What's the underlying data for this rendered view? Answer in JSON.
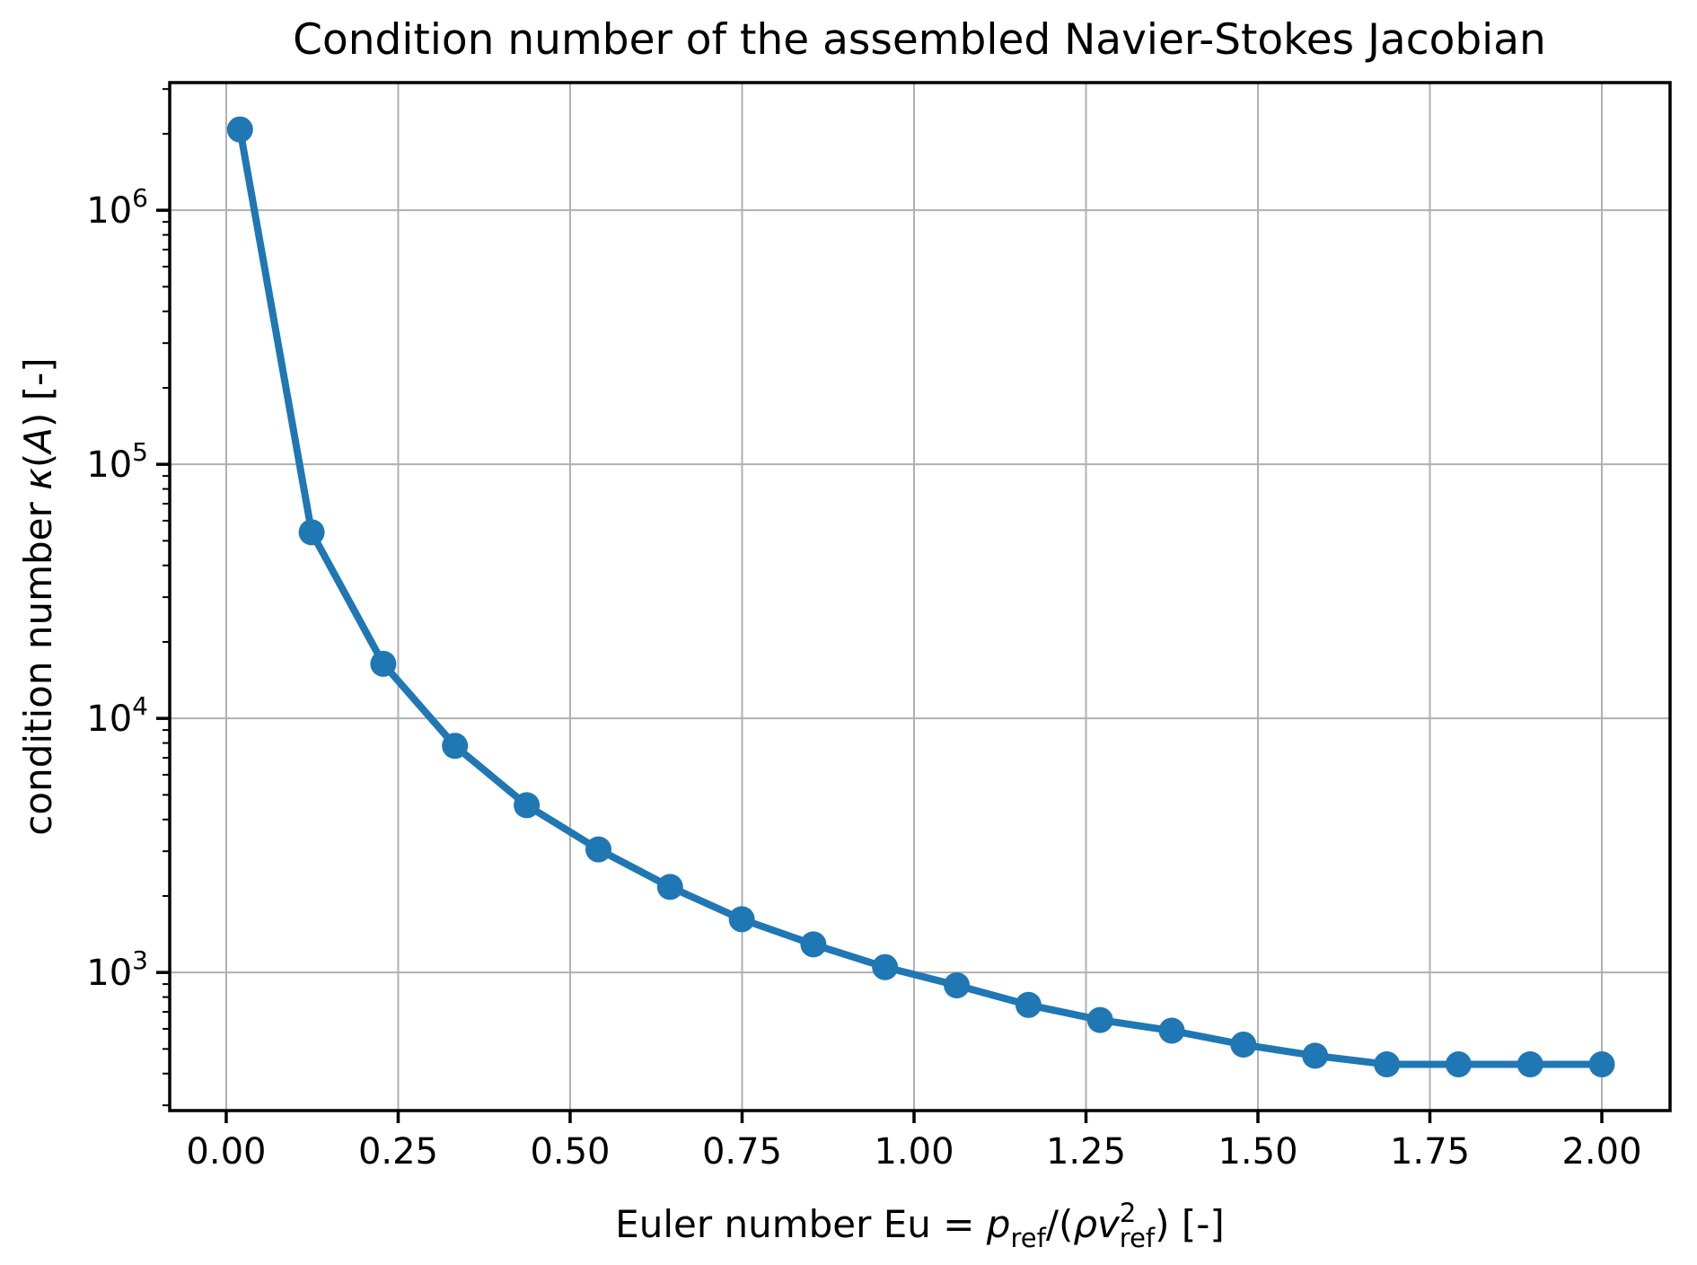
{
  "chart_data": {
    "type": "line",
    "title": "Condition number of the assembled Navier-Stokes Jacobian",
    "xlabel": "Euler number Eu = p_ref/(ρv²_ref) [-]",
    "ylabel": "condition number κ(A) [-]",
    "xlabel_parts": [
      {
        "t": "Euler number Eu"
      },
      {
        "t": " = "
      },
      {
        "t": "p",
        "i": 1,
        "sub": "ref"
      },
      {
        "t": "/("
      },
      {
        "t": "ρ",
        "i": 1
      },
      {
        "t": "v",
        "i": 1,
        "sup": "2",
        "sub": "ref",
        "stack": 1
      },
      {
        "t": ")"
      },
      {
        "t": " [-]"
      }
    ],
    "ylabel_parts": [
      {
        "t": "condition number "
      },
      {
        "t": "κ",
        "i": 1
      },
      {
        "t": "("
      },
      {
        "t": "A",
        "i": 1
      },
      {
        "t": ")"
      },
      {
        "t": " [-]"
      }
    ],
    "series": [
      {
        "name": "condition-number-vs-euler-number",
        "color": "#1f77b4",
        "marker": "circle",
        "x": [
          0.02,
          0.1242,
          0.2284,
          0.3326,
          0.4368,
          0.5411,
          0.6453,
          0.7495,
          0.8537,
          0.9579,
          1.0621,
          1.1663,
          1.2705,
          1.3747,
          1.4789,
          1.5832,
          1.6874,
          1.7916,
          1.8958,
          2.0
        ],
        "y": [
          2080000,
          54000,
          16400,
          7800,
          4550,
          3050,
          2170,
          1620,
          1290,
          1050,
          890,
          745,
          650,
          590,
          520,
          470,
          435,
          435,
          435,
          435
        ]
      }
    ],
    "x_axis": {
      "scale": "linear",
      "min": -0.0822,
      "max": 2.0992,
      "ticks": [
        0,
        0.25,
        0.5,
        0.75,
        1.0,
        1.25,
        1.5,
        1.75,
        2.0
      ],
      "tick_labels": [
        "0.00",
        "0.25",
        "0.50",
        "0.75",
        "1.00",
        "1.25",
        "1.50",
        "1.75",
        "2.00"
      ]
    },
    "y_axis": {
      "scale": "log",
      "min": 286,
      "max": 3180000,
      "tick_exponents": [
        3,
        4,
        5,
        6
      ],
      "tick_labels": [
        "10³",
        "10⁴",
        "10⁵",
        "10⁶"
      ]
    },
    "grid": true,
    "legend": false,
    "colors": {
      "line": "#1f77b4",
      "grid": "#b0b0b0",
      "frame": "#000000",
      "text": "#000000",
      "background": "#ffffff"
    }
  }
}
